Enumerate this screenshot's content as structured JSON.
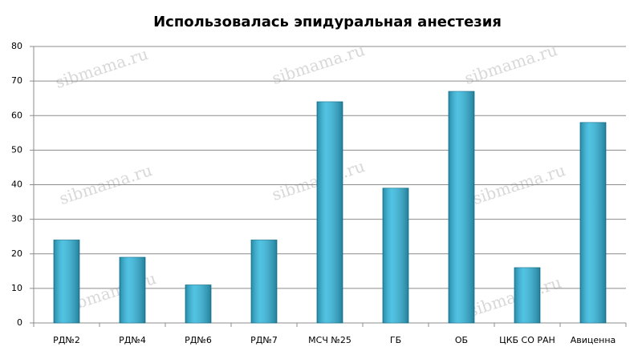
{
  "chart_data": {
    "type": "bar",
    "title": "Использовалась эпидуральная анестезия",
    "watermark": "sibmama.ru",
    "categories": [
      "РД№2",
      "РД№4",
      "РД№6",
      "РД№7",
      "МСЧ №25",
      "ГБ",
      "ОБ",
      "ЦКБ СО РАН",
      "Авиценна"
    ],
    "values": [
      24,
      19,
      11,
      24,
      64,
      39,
      67,
      16,
      58
    ],
    "color": "#33b8de",
    "ylim": [
      0,
      80
    ],
    "yticks": [
      0,
      10,
      20,
      30,
      40,
      50,
      60,
      70,
      80
    ],
    "grid": true
  }
}
